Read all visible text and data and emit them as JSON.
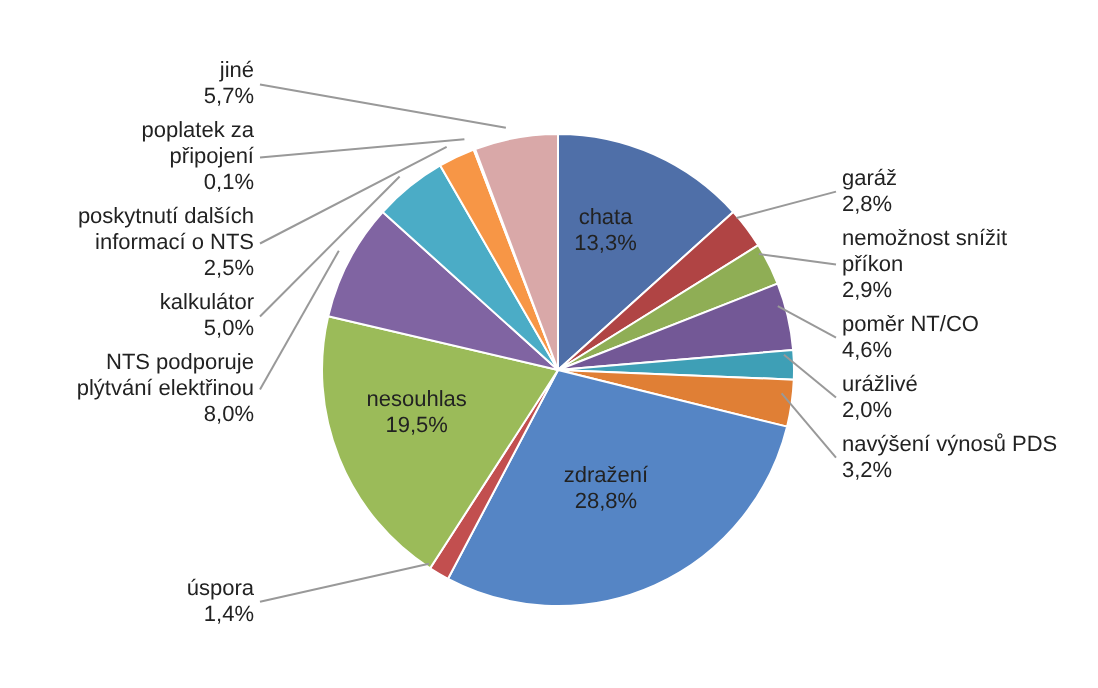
{
  "chart_data": {
    "type": "pie",
    "categories": [
      "chata",
      "garáž",
      "nemožnost snížit příkon",
      "poměr NT/CO",
      "urážlivé",
      "navýšení výnosů PDS",
      "zdražení",
      "úspora",
      "nesouhlas",
      "NTS podporuje plýtvání elektřinou",
      "kalkulátor",
      "poskytnutí dalších informací o NTS",
      "poplatek za připojení",
      "jiné"
    ],
    "values": [
      13.3,
      2.8,
      2.9,
      4.6,
      2.0,
      3.2,
      28.8,
      1.4,
      19.5,
      8.0,
      5.0,
      2.5,
      0.1,
      5.7
    ],
    "colors": [
      "#4f6fa8",
      "#b04444",
      "#8fae55",
      "#735896",
      "#3e9fb6",
      "#e07f35",
      "#5585c5",
      "#c24f4f",
      "#9bbb59",
      "#8064a2",
      "#4bacc6",
      "#f79646",
      "#3c5f93",
      "#d9a8a8"
    ],
    "value_labels": [
      "13,3%",
      "2,8%",
      "2,9%",
      "4,6%",
      "2,0%",
      "3,2%",
      "28,8%",
      "1,4%",
      "19,5%",
      "8,0%",
      "5,0%",
      "2,5%",
      "0,1%",
      "5,7%"
    ]
  }
}
